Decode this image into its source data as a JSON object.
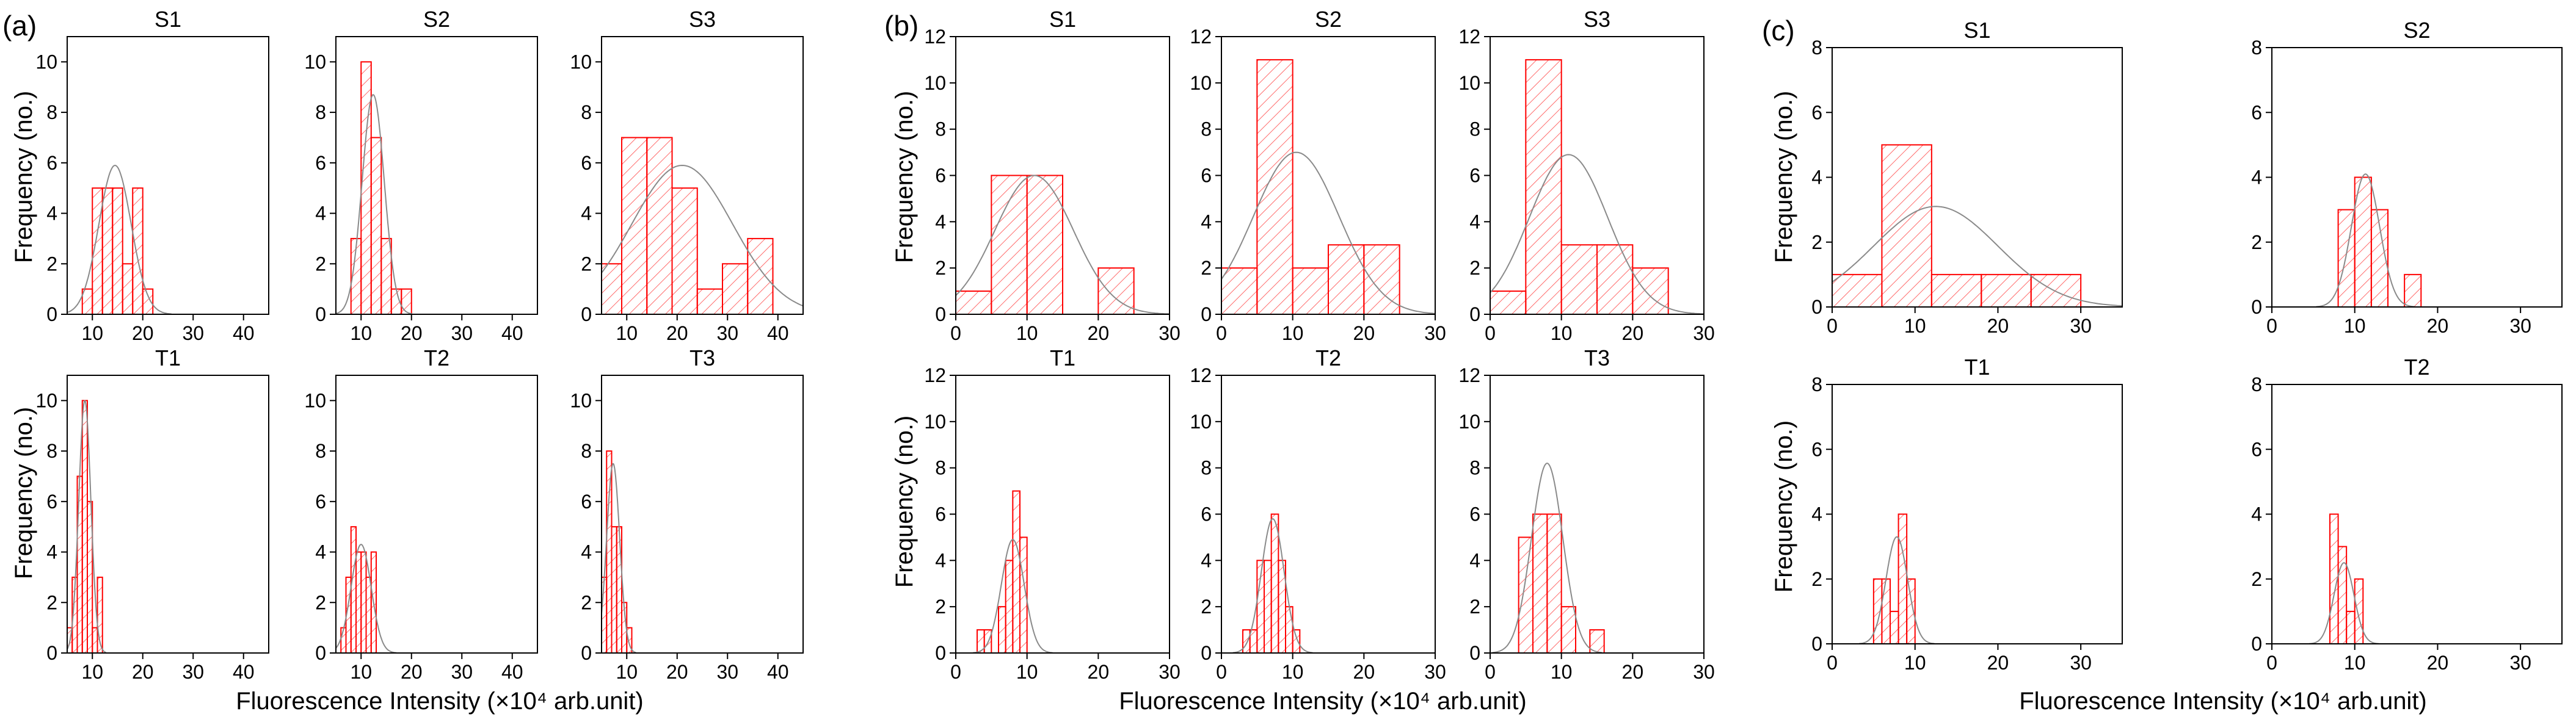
{
  "figure": {
    "colors": {
      "bar": "#ff0000",
      "hatch": "#ff4d4d",
      "fit": "#8a8a8a",
      "axis": "#000000"
    },
    "groups": [
      {
        "letter": "(a)",
        "xlabel": "Fluorescence Intensity (×10⁴ arb.unit)",
        "ylabel": "Frequency (no.)"
      },
      {
        "letter": "(b)",
        "xlabel": "Fluorescence Intensity (×10⁴ arb.unit)",
        "ylabel": "Frequency (no.)"
      },
      {
        "letter": "(c)",
        "xlabel": "Fluorescence Intensity (×10⁴ arb.unit)",
        "ylabel": "Frequency (no.)"
      }
    ]
  },
  "chart_data": [
    {
      "type": "bar",
      "group": 0,
      "title": "S1",
      "xlim": [
        5,
        45
      ],
      "ylim": [
        0,
        11
      ],
      "xticks": [
        10,
        20,
        30,
        40
      ],
      "yticks": [
        0,
        2,
        4,
        6,
        8,
        10
      ],
      "bins": [
        [
          8,
          10,
          1
        ],
        [
          10,
          12,
          5
        ],
        [
          12,
          14,
          5
        ],
        [
          14,
          16,
          5
        ],
        [
          16,
          18,
          2
        ],
        [
          18,
          20,
          5
        ],
        [
          20,
          22,
          1
        ]
      ],
      "fit": {
        "mu": 14.5,
        "sigma": 3.2,
        "peak": 5.9
      }
    },
    {
      "type": "bar",
      "group": 0,
      "title": "S2",
      "xlim": [
        5,
        45
      ],
      "ylim": [
        0,
        11
      ],
      "xticks": [
        10,
        20,
        30,
        40
      ],
      "yticks": [
        0,
        2,
        4,
        6,
        8,
        10
      ],
      "bins": [
        [
          8,
          10,
          3
        ],
        [
          10,
          12,
          10
        ],
        [
          12,
          14,
          7
        ],
        [
          14,
          16,
          3
        ],
        [
          16,
          18,
          1
        ],
        [
          18,
          20,
          1
        ]
      ],
      "fit": {
        "mu": 12.4,
        "sigma": 2.2,
        "peak": 8.7
      }
    },
    {
      "type": "bar",
      "group": 0,
      "title": "S3",
      "xlim": [
        5,
        45
      ],
      "ylim": [
        0,
        11
      ],
      "xticks": [
        10,
        20,
        30,
        40
      ],
      "yticks": [
        0,
        2,
        4,
        6,
        8,
        10
      ],
      "bins": [
        [
          5,
          9,
          2
        ],
        [
          9,
          14,
          7
        ],
        [
          14,
          19,
          7
        ],
        [
          19,
          24,
          5
        ],
        [
          24,
          29,
          1
        ],
        [
          29,
          34,
          2
        ],
        [
          34,
          39,
          3
        ]
      ],
      "fit": {
        "mu": 21,
        "sigma": 10,
        "peak": 5.9
      }
    },
    {
      "type": "bar",
      "group": 0,
      "title": "T1",
      "xlim": [
        5,
        45
      ],
      "ylim": [
        0,
        11
      ],
      "xticks": [
        10,
        20,
        30,
        40
      ],
      "yticks": [
        0,
        2,
        4,
        6,
        8,
        10
      ],
      "bins": [
        [
          5,
          6,
          1
        ],
        [
          6,
          7,
          3
        ],
        [
          7,
          8,
          7
        ],
        [
          8,
          9,
          10
        ],
        [
          9,
          10,
          6
        ],
        [
          10,
          11,
          1
        ],
        [
          11,
          12,
          3
        ]
      ],
      "fit": {
        "mu": 8.5,
        "sigma": 1.2,
        "peak": 10
      }
    },
    {
      "type": "bar",
      "group": 0,
      "title": "T2",
      "xlim": [
        5,
        45
      ],
      "ylim": [
        0,
        11
      ],
      "xticks": [
        10,
        20,
        30,
        40
      ],
      "yticks": [
        0,
        2,
        4,
        6,
        8,
        10
      ],
      "bins": [
        [
          6,
          7,
          1
        ],
        [
          7,
          8,
          3
        ],
        [
          8,
          9,
          5
        ],
        [
          9,
          10,
          4
        ],
        [
          10,
          11,
          4
        ],
        [
          11,
          12,
          3
        ],
        [
          12,
          13,
          4
        ]
      ],
      "fit": {
        "mu": 10,
        "sigma": 2,
        "peak": 4.3
      }
    },
    {
      "type": "bar",
      "group": 0,
      "title": "T3",
      "xlim": [
        5,
        45
      ],
      "ylim": [
        0,
        11
      ],
      "xticks": [
        10,
        20,
        30,
        40
      ],
      "yticks": [
        0,
        2,
        4,
        6,
        8,
        10
      ],
      "bins": [
        [
          5,
          6,
          3
        ],
        [
          6,
          7,
          8
        ],
        [
          7,
          8,
          5
        ],
        [
          8,
          9,
          5
        ],
        [
          9,
          10,
          2
        ],
        [
          10,
          11,
          1
        ]
      ],
      "fit": {
        "mu": 7.3,
        "sigma": 1.3,
        "peak": 7.5
      }
    },
    {
      "type": "bar",
      "group": 1,
      "title": "S1",
      "xlim": [
        0,
        30
      ],
      "ylim": [
        0,
        12
      ],
      "xticks": [
        0,
        10,
        20,
        30
      ],
      "yticks": [
        0,
        2,
        4,
        6,
        8,
        10,
        12
      ],
      "bins": [
        [
          0,
          5,
          1
        ],
        [
          5,
          10,
          6
        ],
        [
          10,
          15,
          6
        ],
        [
          15,
          20,
          0
        ],
        [
          20,
          25,
          2
        ]
      ],
      "fit": {
        "mu": 11,
        "sigma": 5.5,
        "peak": 6
      }
    },
    {
      "type": "bar",
      "group": 1,
      "title": "S2",
      "xlim": [
        0,
        30
      ],
      "ylim": [
        0,
        12
      ],
      "xticks": [
        0,
        10,
        20,
        30
      ],
      "yticks": [
        0,
        2,
        4,
        6,
        8,
        10,
        12
      ],
      "bins": [
        [
          0,
          5,
          2
        ],
        [
          5,
          10,
          11
        ],
        [
          10,
          15,
          2
        ],
        [
          15,
          20,
          3
        ],
        [
          20,
          25,
          3
        ]
      ],
      "fit": {
        "mu": 10.5,
        "sigma": 6,
        "peak": 7
      }
    },
    {
      "type": "bar",
      "group": 1,
      "title": "S3",
      "xlim": [
        0,
        30
      ],
      "ylim": [
        0,
        12
      ],
      "xticks": [
        0,
        10,
        20,
        30
      ],
      "yticks": [
        0,
        2,
        4,
        6,
        8,
        10,
        12
      ],
      "bins": [
        [
          0,
          5,
          1
        ],
        [
          5,
          10,
          11
        ],
        [
          10,
          15,
          3
        ],
        [
          15,
          20,
          3
        ],
        [
          20,
          25,
          2
        ]
      ],
      "fit": {
        "mu": 11,
        "sigma": 5.5,
        "peak": 6.9
      }
    },
    {
      "type": "bar",
      "group": 1,
      "title": "T1",
      "xlim": [
        0,
        30
      ],
      "ylim": [
        0,
        12
      ],
      "xticks": [
        0,
        10,
        20,
        30
      ],
      "yticks": [
        0,
        2,
        4,
        6,
        8,
        10,
        12
      ],
      "bins": [
        [
          3,
          4,
          1
        ],
        [
          4,
          5,
          1
        ],
        [
          5,
          6,
          0
        ],
        [
          6,
          7,
          2
        ],
        [
          7,
          8,
          4
        ],
        [
          8,
          9,
          7
        ],
        [
          9,
          10,
          5
        ]
      ],
      "fit": {
        "mu": 8,
        "sigma": 1.6,
        "peak": 4.9
      }
    },
    {
      "type": "bar",
      "group": 1,
      "title": "T2",
      "xlim": [
        0,
        30
      ],
      "ylim": [
        0,
        12
      ],
      "xticks": [
        0,
        10,
        20,
        30
      ],
      "yticks": [
        0,
        2,
        4,
        6,
        8,
        10,
        12
      ],
      "bins": [
        [
          3,
          4,
          1
        ],
        [
          4,
          5,
          1
        ],
        [
          5,
          6,
          4
        ],
        [
          6,
          7,
          4
        ],
        [
          7,
          8,
          6
        ],
        [
          8,
          9,
          4
        ],
        [
          9,
          10,
          2
        ],
        [
          10,
          11,
          1
        ]
      ],
      "fit": {
        "mu": 7.2,
        "sigma": 1.6,
        "peak": 5.8
      }
    },
    {
      "type": "bar",
      "group": 1,
      "title": "T3",
      "xlim": [
        0,
        30
      ],
      "ylim": [
        0,
        12
      ],
      "xticks": [
        0,
        10,
        20,
        30
      ],
      "yticks": [
        0,
        2,
        4,
        6,
        8,
        10,
        12
      ],
      "bins": [
        [
          4,
          6,
          5
        ],
        [
          6,
          8,
          6
        ],
        [
          8,
          10,
          6
        ],
        [
          10,
          12,
          2
        ],
        [
          12,
          14,
          0
        ],
        [
          14,
          16,
          1
        ]
      ],
      "fit": {
        "mu": 8,
        "sigma": 2.2,
        "peak": 8.2
      }
    },
    {
      "type": "bar",
      "group": 2,
      "title": "S1",
      "xlim": [
        0,
        35
      ],
      "ylim": [
        0,
        8
      ],
      "xticks": [
        0,
        10,
        20,
        30
      ],
      "yticks": [
        0,
        2,
        4,
        6,
        8
      ],
      "bins": [
        [
          0,
          6,
          1
        ],
        [
          6,
          12,
          5
        ],
        [
          12,
          18,
          1
        ],
        [
          18,
          24,
          1
        ],
        [
          24,
          30,
          1
        ]
      ],
      "fit": {
        "mu": 12.5,
        "sigma": 7.5,
        "peak": 3.1
      }
    },
    {
      "type": "bar",
      "group": 2,
      "title": "S2",
      "xlim": [
        0,
        35
      ],
      "ylim": [
        0,
        8
      ],
      "xticks": [
        0,
        10,
        20,
        30
      ],
      "yticks": [
        0,
        2,
        4,
        6,
        8
      ],
      "bins": [
        [
          8,
          10,
          3
        ],
        [
          10,
          12,
          4
        ],
        [
          12,
          14,
          3
        ],
        [
          14,
          16,
          0
        ],
        [
          16,
          18,
          1
        ]
      ],
      "fit": {
        "mu": 11.3,
        "sigma": 1.7,
        "peak": 4.1
      }
    },
    {
      "type": "bar",
      "group": 2,
      "title": "T1",
      "xlim": [
        0,
        35
      ],
      "ylim": [
        0,
        8
      ],
      "xticks": [
        0,
        10,
        20,
        30
      ],
      "yticks": [
        0,
        2,
        4,
        6,
        8
      ],
      "bins": [
        [
          5,
          6,
          2
        ],
        [
          6,
          7,
          2
        ],
        [
          7,
          8,
          1
        ],
        [
          8,
          9,
          4
        ],
        [
          9,
          10,
          2
        ]
      ],
      "fit": {
        "mu": 7.8,
        "sigma": 1.3,
        "peak": 3.3
      }
    },
    {
      "type": "bar",
      "group": 2,
      "title": "T2",
      "xlim": [
        0,
        35
      ],
      "ylim": [
        0,
        8
      ],
      "xticks": [
        0,
        10,
        20,
        30
      ],
      "yticks": [
        0,
        2,
        4,
        6,
        8
      ],
      "bins": [
        [
          7,
          8,
          4
        ],
        [
          8,
          9,
          3
        ],
        [
          9,
          10,
          1
        ],
        [
          10,
          11,
          2
        ]
      ],
      "fit": {
        "mu": 8.7,
        "sigma": 1.2,
        "peak": 2.5
      }
    }
  ]
}
